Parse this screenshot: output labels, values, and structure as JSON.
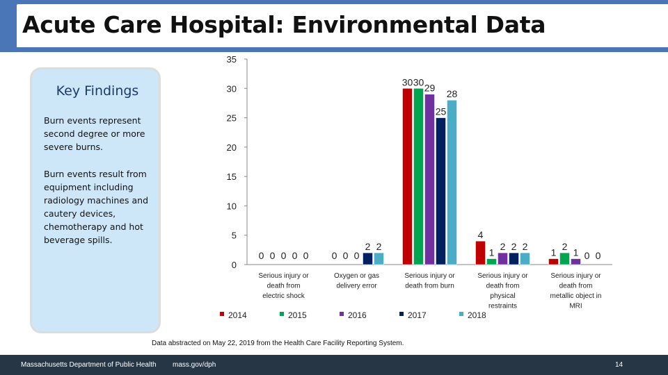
{
  "header": {
    "title": "Acute Care Hospital: Environmental Data"
  },
  "panel": {
    "title": "Key Findings",
    "paragraphs": [
      "Burn events represent second degree or more severe burns.",
      "Burn events result from equipment including radiology machines and cautery devices, chemotherapy and hot beverage spills."
    ]
  },
  "source_note": "Data abstracted on May 22, 2019 from the Health Care Facility Reporting System.",
  "footer": {
    "org": "Massachusetts Department of Public Health",
    "url": "mass.gov/dph",
    "page": "14"
  },
  "colors": {
    "header": "#4a76b8",
    "panel": "#cde6f8",
    "footer": "#263645"
  },
  "chart_data": {
    "type": "bar",
    "categories": [
      "Serious injury or death from electric shock",
      "Oxygen or gas delivery error",
      "Serious injury or death from burn",
      "Serious injury or death from physical restraints",
      "Serious injury or death from metallic object in MRI"
    ],
    "series": [
      {
        "name": "2014",
        "color": "#c00000",
        "values": [
          0,
          0,
          30,
          4,
          1
        ]
      },
      {
        "name": "2015",
        "color": "#00a550",
        "values": [
          0,
          0,
          30,
          1,
          2
        ]
      },
      {
        "name": "2016",
        "color": "#7030a0",
        "values": [
          0,
          0,
          29,
          2,
          1
        ]
      },
      {
        "name": "2017",
        "color": "#002060",
        "values": [
          0,
          2,
          25,
          2,
          0
        ]
      },
      {
        "name": "2018",
        "color": "#4bacc6",
        "values": [
          0,
          2,
          28,
          2,
          0
        ]
      }
    ],
    "yticks": [
      0,
      5,
      10,
      15,
      20,
      25,
      30,
      35
    ],
    "ylim": [
      0,
      35
    ],
    "grid": false,
    "legend": "bottom"
  }
}
